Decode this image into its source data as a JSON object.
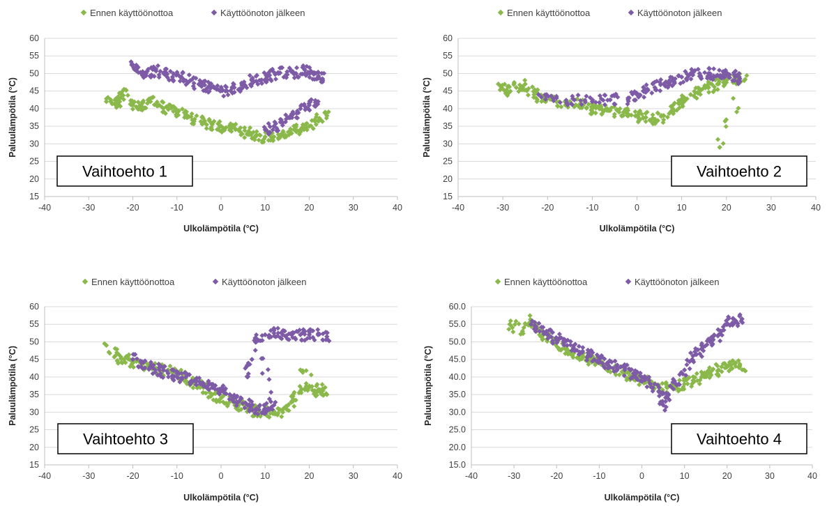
{
  "colors": {
    "before": "#8ab84a",
    "after": "#7e5ba6",
    "grid": "#d9d9d9",
    "axis": "#bfbfbf"
  },
  "chart_data": [
    {
      "type": "scatter",
      "label_box": "Vaihtoehto 1",
      "label_box_position": "bottom-left",
      "xlabel": "Ulkolämpötila (°C)",
      "ylabel": "Paluulämpötila (°C)",
      "xlim": [
        -40,
        40
      ],
      "ylim": [
        15,
        60
      ],
      "x_ticks": [
        "-40",
        "-30",
        "-20",
        "-10",
        "0",
        "10",
        "20",
        "30",
        "40"
      ],
      "y_ticks": [
        "15",
        "20",
        "25",
        "30",
        "35",
        "40",
        "45",
        "50",
        "55",
        "60"
      ],
      "legend_position": "top",
      "series": [
        {
          "name": "Ennen käyttöönottoa",
          "color": "#8ab84a",
          "points": [
            [
              -26,
              42
            ],
            [
              -24,
              41.5
            ],
            [
              -23,
              42
            ],
            [
              -22,
              45.5
            ],
            [
              -20,
              41
            ],
            [
              -18,
              40
            ],
            [
              -16,
              42
            ],
            [
              -14,
              41
            ],
            [
              -12,
              40
            ],
            [
              -10,
              39.5
            ],
            [
              -8,
              38
            ],
            [
              -6,
              37
            ],
            [
              -4,
              36
            ],
            [
              -2,
              35.5
            ],
            [
              0,
              35
            ],
            [
              2,
              34.5
            ],
            [
              4,
              34
            ],
            [
              6,
              33
            ],
            [
              8,
              32.5
            ],
            [
              10,
              32
            ],
            [
              12,
              32
            ],
            [
              14,
              32.5
            ],
            [
              16,
              33
            ],
            [
              18,
              34
            ],
            [
              20,
              35
            ],
            [
              22,
              36.5
            ],
            [
              24,
              38
            ]
          ]
        },
        {
          "name": "Käyttöönoton jälkeen",
          "color": "#7e5ba6",
          "points": [
            [
              -20,
              52.5
            ],
            [
              -19,
              52
            ],
            [
              -17,
              50
            ],
            [
              -15,
              51
            ],
            [
              -13,
              50
            ],
            [
              -11,
              49
            ],
            [
              -9,
              49
            ],
            [
              -7,
              48
            ],
            [
              -5,
              47
            ],
            [
              -3,
              46
            ],
            [
              -1,
              45.5
            ],
            [
              1,
              45
            ],
            [
              3,
              46
            ],
            [
              5,
              47
            ],
            [
              7,
              48
            ],
            [
              9,
              48
            ],
            [
              11,
              49.5
            ],
            [
              13,
              50
            ],
            [
              15,
              50.5
            ],
            [
              17,
              50
            ],
            [
              19,
              51
            ],
            [
              21,
              50
            ],
            [
              22,
              49
            ],
            [
              23,
              48.5
            ],
            [
              10,
              34
            ],
            [
              12,
              35
            ],
            [
              14,
              36
            ],
            [
              16,
              38
            ],
            [
              18,
              40
            ],
            [
              20,
              41
            ],
            [
              22,
              42
            ]
          ]
        }
      ]
    },
    {
      "type": "scatter",
      "label_box": "Vaihtoehto 2",
      "label_box_position": "bottom-right",
      "xlabel": "Ulkolämpötila (°C)",
      "ylabel": "Paluulämpötila (°C)",
      "xlim": [
        -40,
        40
      ],
      "ylim": [
        15,
        60
      ],
      "x_ticks": [
        "-40",
        "-30",
        "-20",
        "-10",
        "0",
        "10",
        "20",
        "30",
        "40"
      ],
      "y_ticks": [
        "15",
        "20",
        "25",
        "30",
        "35",
        "40",
        "45",
        "50",
        "55",
        "60"
      ],
      "legend_position": "top",
      "series": [
        {
          "name": "Ennen käyttöönottoa",
          "color": "#8ab84a",
          "points": [
            [
              -31,
              47
            ],
            [
              -29,
              45
            ],
            [
              -27,
              46
            ],
            [
              -25,
              47
            ],
            [
              -23,
              44
            ],
            [
              -21,
              43
            ],
            [
              -18,
              42
            ],
            [
              -15,
              42
            ],
            [
              -12,
              41
            ],
            [
              -10,
              40
            ],
            [
              -8,
              40
            ],
            [
              -6,
              39.5
            ],
            [
              -4,
              39
            ],
            [
              -2,
              38.5
            ],
            [
              0,
              38
            ],
            [
              2,
              37.5
            ],
            [
              4,
              37
            ],
            [
              6,
              38
            ],
            [
              8,
              40
            ],
            [
              10,
              42
            ],
            [
              12,
              44
            ],
            [
              14,
              45
            ],
            [
              16,
              46
            ],
            [
              18,
              47
            ],
            [
              20,
              48
            ],
            [
              22,
              48.5
            ],
            [
              24,
              48
            ],
            [
              18.5,
              29
            ]
          ]
        },
        {
          "name": "Käyttöönoton jälkeen",
          "color": "#7e5ba6",
          "points": [
            [
              -22,
              44
            ],
            [
              -18,
              43
            ],
            [
              -14,
              42.5
            ],
            [
              -10,
              42
            ],
            [
              -6,
              42.5
            ],
            [
              -2,
              43
            ],
            [
              0,
              44
            ],
            [
              2,
              45
            ],
            [
              4,
              46
            ],
            [
              6,
              47
            ],
            [
              8,
              48
            ],
            [
              10,
              49
            ],
            [
              12,
              50
            ],
            [
              14,
              50
            ],
            [
              16,
              50
            ],
            [
              18,
              49.5
            ],
            [
              20,
              49.5
            ],
            [
              22,
              49
            ],
            [
              23,
              48.5
            ]
          ]
        }
      ]
    },
    {
      "type": "scatter",
      "label_box": "Vaihtoehto 3",
      "label_box_position": "bottom-left",
      "xlabel": "Ulkolämpötila (°C)",
      "ylabel": "Paluulämpötila (°C)",
      "xlim": [
        -40,
        40
      ],
      "ylim": [
        15,
        60
      ],
      "x_ticks": [
        "-40",
        "-30",
        "-20",
        "-10",
        "0",
        "10",
        "20",
        "30",
        "40"
      ],
      "y_ticks": [
        "15",
        "20",
        "25",
        "30",
        "35",
        "40",
        "45",
        "50",
        "55",
        "60"
      ],
      "legend_position": "top",
      "series": [
        {
          "name": "Ennen käyttöönottoa",
          "color": "#8ab84a",
          "points": [
            [
              -26,
              49
            ],
            [
              -24,
              46
            ],
            [
              -22,
              45
            ],
            [
              -20,
              44
            ],
            [
              -18,
              44
            ],
            [
              -16,
              43
            ],
            [
              -14,
              42
            ],
            [
              -12,
              42
            ],
            [
              -10,
              41
            ],
            [
              -8,
              40
            ],
            [
              -6,
              38
            ],
            [
              -4,
              37
            ],
            [
              -2,
              35
            ],
            [
              0,
              34
            ],
            [
              2,
              33
            ],
            [
              4,
              32
            ],
            [
              6,
              31
            ],
            [
              8,
              30
            ],
            [
              10,
              30
            ],
            [
              12,
              30
            ],
            [
              14,
              30
            ],
            [
              16,
              33
            ],
            [
              18,
              36
            ],
            [
              20,
              37
            ],
            [
              22,
              36
            ],
            [
              24,
              35
            ],
            [
              18,
              42
            ]
          ]
        },
        {
          "name": "Käyttöönoton jälkeen",
          "color": "#7e5ba6",
          "points": [
            [
              -20,
              45
            ],
            [
              -18,
              44
            ],
            [
              -16,
              43
            ],
            [
              -14,
              42
            ],
            [
              -12,
              41
            ],
            [
              -10,
              40
            ],
            [
              -8,
              40
            ],
            [
              -6,
              39
            ],
            [
              -4,
              38
            ],
            [
              -2,
              37
            ],
            [
              0,
              36
            ],
            [
              2,
              35
            ],
            [
              4,
              33
            ],
            [
              6,
              32
            ],
            [
              8,
              31
            ],
            [
              10,
              31
            ],
            [
              12,
              32
            ],
            [
              8,
              50
            ],
            [
              10,
              52
            ],
            [
              12,
              52.5
            ],
            [
              14,
              52
            ],
            [
              16,
              52
            ],
            [
              18,
              52
            ],
            [
              20,
              52
            ],
            [
              22,
              52
            ],
            [
              24,
              51.5
            ],
            [
              6,
              40
            ],
            [
              7,
              45
            ]
          ]
        }
      ]
    },
    {
      "type": "scatter",
      "label_box": "Vaihtoehto 4",
      "label_box_position": "bottom-right",
      "xlabel": "Ulkolämpötila (°C)",
      "ylabel": "Paluulämpötila (°C)",
      "xlim": [
        -40,
        40
      ],
      "ylim": [
        15,
        60
      ],
      "x_ticks": [
        "-40",
        "-30",
        "-20",
        "-10",
        "0",
        "10",
        "20",
        "30",
        "40"
      ],
      "y_ticks": [
        "15.0",
        "20.0",
        "25.0",
        "30.0",
        "35.0",
        "40.0",
        "45.0",
        "50.0",
        "55.0",
        "60.0"
      ],
      "legend_position": "top",
      "series": [
        {
          "name": "Ennen käyttöönottoa",
          "color": "#8ab84a",
          "points": [
            [
              -31,
              55
            ],
            [
              -28,
              53
            ],
            [
              -26,
              56
            ],
            [
              -24,
              52
            ],
            [
              -22,
              51
            ],
            [
              -20,
              50
            ],
            [
              -18,
              48
            ],
            [
              -16,
              47
            ],
            [
              -14,
              46
            ],
            [
              -12,
              45
            ],
            [
              -10,
              44
            ],
            [
              -8,
              43
            ],
            [
              -6,
              42
            ],
            [
              -4,
              41
            ],
            [
              -2,
              40
            ],
            [
              0,
              39
            ],
            [
              2,
              38
            ],
            [
              4,
              37
            ],
            [
              6,
              37
            ],
            [
              8,
              37
            ],
            [
              10,
              38
            ],
            [
              12,
              39
            ],
            [
              14,
              40
            ],
            [
              16,
              41
            ],
            [
              18,
              42
            ],
            [
              20,
              43
            ],
            [
              22,
              44
            ],
            [
              24,
              42
            ]
          ]
        },
        {
          "name": "Käyttöönoton jälkeen",
          "color": "#7e5ba6",
          "points": [
            [
              -26,
              55
            ],
            [
              -24,
              53
            ],
            [
              -22,
              52
            ],
            [
              -20,
              51
            ],
            [
              -18,
              50
            ],
            [
              -16,
              48
            ],
            [
              -14,
              47
            ],
            [
              -12,
              46
            ],
            [
              -10,
              45
            ],
            [
              -8,
              44
            ],
            [
              -6,
              43
            ],
            [
              -4,
              42
            ],
            [
              -2,
              41
            ],
            [
              0,
              40
            ],
            [
              2,
              38
            ],
            [
              4,
              36
            ],
            [
              5,
              32
            ],
            [
              6,
              35
            ],
            [
              8,
              38
            ],
            [
              10,
              42
            ],
            [
              12,
              46
            ],
            [
              14,
              48
            ],
            [
              16,
              50
            ],
            [
              18,
              52
            ],
            [
              20,
              55
            ],
            [
              22,
              56
            ],
            [
              23.5,
              56.5
            ]
          ]
        }
      ]
    }
  ]
}
